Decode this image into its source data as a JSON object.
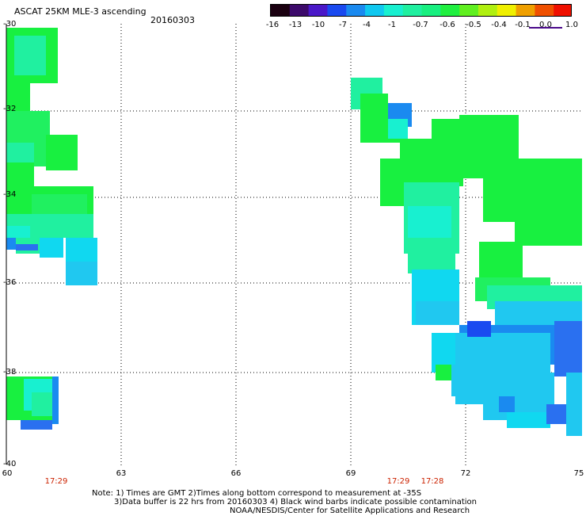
{
  "header": {
    "title": "ASCAT 25KM MLE-3 ascending",
    "date": "20160303"
  },
  "colorbar": {
    "colors": [
      "#1a0010",
      "#3c0a6a",
      "#4a18c8",
      "#1a4af0",
      "#1a8af0",
      "#10c8f0",
      "#18f0d0",
      "#20f0a0",
      "#18f080",
      "#20f040",
      "#60f020",
      "#b0f010",
      "#f0f000",
      "#f0a000",
      "#f05000",
      "#f01000"
    ],
    "labels": [
      "-16",
      "-13",
      "-10",
      "-7",
      "-4",
      "-1",
      "-0.7",
      "-0.6",
      "-0.5",
      "-0.4",
      "-0.1",
      "0.0",
      "1.0"
    ]
  },
  "axes": {
    "y_labels": [
      "-30",
      "-32",
      "-34",
      "-36",
      "-38",
      "-40"
    ],
    "x_labels": [
      "60",
      "63",
      "66",
      "69",
      "72",
      "75"
    ]
  },
  "times": [
    "17:29",
    "17:29",
    "17:28"
  ],
  "notes": {
    "line1": "Note: 1) Times are GMT 2)Times along bottom correspond to measurement at -35S",
    "line2": "3)Data buffer is 22 hrs from 20160303 4) Black wind barbs indicate possible contamination",
    "line3": "NOAA/NESDIS/Center for Satellite Applications and Research"
  }
}
